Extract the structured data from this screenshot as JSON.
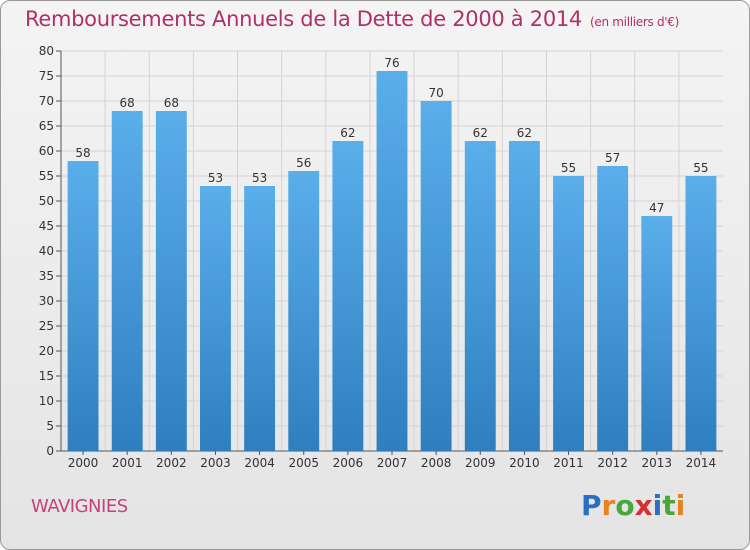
{
  "chart_data": {
    "type": "bar",
    "title": "Remboursements Annuels de la Dette de 2000 à 2014",
    "unit_note": "(en milliers d'€)",
    "categories": [
      "2000",
      "2001",
      "2002",
      "2003",
      "2004",
      "2005",
      "2006",
      "2007",
      "2008",
      "2009",
      "2010",
      "2011",
      "2012",
      "2013",
      "2014"
    ],
    "values": [
      58,
      68,
      68,
      53,
      53,
      56,
      62,
      76,
      70,
      62,
      62,
      55,
      57,
      47,
      55
    ],
    "ylim": [
      0,
      80
    ],
    "yticks": [
      0,
      5,
      10,
      15,
      20,
      25,
      30,
      35,
      40,
      45,
      50,
      55,
      60,
      65,
      70,
      75,
      80
    ],
    "xlabel": "",
    "ylabel": "",
    "grid": true,
    "bar_color_top": "#5aaeea",
    "bar_color_bottom": "#2f7fc0"
  },
  "commune": "WAVIGNIES",
  "logo": {
    "letters": [
      "P",
      "r",
      "o",
      "x",
      "i",
      "t",
      "i"
    ],
    "colors": [
      "#2b6fc1",
      "#e8821e",
      "#49a83a",
      "#d43030",
      "#2b6fc1",
      "#49a83a",
      "#e8821e"
    ]
  }
}
